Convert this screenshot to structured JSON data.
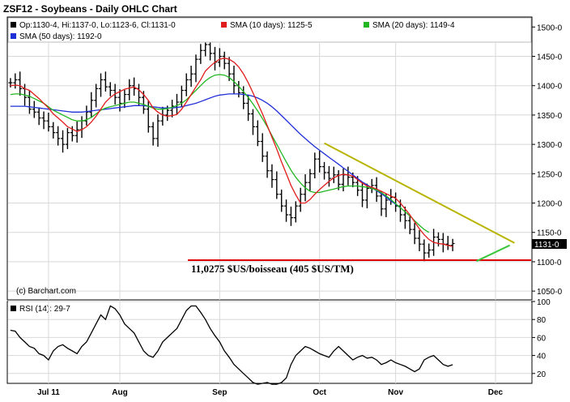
{
  "title": "ZSF12 - Soybeans - Daily OHLC Chart",
  "legend": {
    "ohlc": "Op:1130-4, Hi:1137-0, Lo:1123-6, Cl:1131-0",
    "sma10": "SMA (10 days): 1125-5",
    "sma20": "SMA (20 days): 1149-4",
    "sma50": "SMA (50 days): 1192-0"
  },
  "colors": {
    "ohlc": "#000000",
    "sma10": "#e11b1b",
    "sma20": "#22b722",
    "sma50": "#1f2fd8",
    "trend_upper": "#b8b400",
    "trend_lower": "#3cc63c",
    "support": "#dd0000",
    "rsi": "#000000",
    "grid": "#d8d8d8"
  },
  "price_label": "1131-0",
  "annotation": "11,0275 $US/boisseau (405 $US/TM)",
  "credit": "(c) Barchart.com",
  "rsi_legend": "RSI (14): 29-7",
  "chart_data": [
    {
      "type": "line",
      "title": "ZSF12 - Soybeans - Daily OHLC Chart",
      "y_ticks": [
        "1050-0",
        "1100-0",
        "1150-0",
        "1200-0",
        "1250-0",
        "1300-0",
        "1350-0",
        "1400-0",
        "1450-0",
        "1500-0"
      ],
      "ylim": [
        1035,
        1517
      ],
      "x_ticks": [
        {
          "label": "Jul 11",
          "day": 8
        },
        {
          "label": "Aug",
          "day": 23
        },
        {
          "label": "Sep",
          "day": 44
        },
        {
          "label": "Oct",
          "day": 65
        },
        {
          "label": "Nov",
          "day": 81
        },
        {
          "label": "Dec",
          "day": 102
        }
      ],
      "ohlc_close": [
        1405,
        1410,
        1395,
        1380,
        1360,
        1355,
        1345,
        1340,
        1330,
        1320,
        1310,
        1300,
        1320,
        1315,
        1325,
        1340,
        1355,
        1375,
        1395,
        1410,
        1398,
        1392,
        1380,
        1370,
        1385,
        1400,
        1395,
        1380,
        1360,
        1330,
        1310,
        1340,
        1350,
        1358,
        1365,
        1372,
        1392,
        1410,
        1420,
        1445,
        1460,
        1470,
        1455,
        1440,
        1450,
        1438,
        1420,
        1400,
        1388,
        1370,
        1352,
        1330,
        1305,
        1280,
        1255,
        1240,
        1215,
        1195,
        1180,
        1175,
        1195,
        1215,
        1235,
        1250,
        1275,
        1262,
        1252,
        1242,
        1248,
        1232,
        1248,
        1244,
        1235,
        1222,
        1205,
        1225,
        1230,
        1212,
        1190,
        1205,
        1210,
        1195,
        1180,
        1170,
        1155,
        1140,
        1130,
        1115,
        1120,
        1142,
        1138,
        1130,
        1128,
        1131
      ],
      "sma10": [
        1400,
        1401,
        1400,
        1395,
        1392,
        1385,
        1378,
        1370,
        1362,
        1352,
        1345,
        1338,
        1330,
        1326,
        1322,
        1325,
        1330,
        1338,
        1348,
        1360,
        1372,
        1380,
        1386,
        1390,
        1394,
        1396,
        1398,
        1393,
        1385,
        1375,
        1362,
        1355,
        1350,
        1348,
        1349,
        1351,
        1360,
        1372,
        1385,
        1398,
        1410,
        1425,
        1433,
        1440,
        1445,
        1447,
        1445,
        1440,
        1432,
        1420,
        1405,
        1388,
        1370,
        1352,
        1332,
        1312,
        1292,
        1270,
        1250,
        1230,
        1214,
        1200,
        1200,
        1206,
        1215,
        1223,
        1230,
        1237,
        1243,
        1247,
        1249,
        1248,
        1246,
        1240,
        1234,
        1229,
        1227,
        1224,
        1220,
        1216,
        1212,
        1208,
        1200,
        1190,
        1180,
        1168,
        1156,
        1146,
        1138,
        1133,
        1131,
        1130,
        1128,
        1126
      ],
      "sma20": [
        1385,
        1386,
        1386,
        1384,
        1382,
        1378,
        1374,
        1370,
        1364,
        1358,
        1354,
        1350,
        1346,
        1342,
        1340,
        1340,
        1342,
        1346,
        1352,
        1358,
        1362,
        1364,
        1366,
        1368,
        1370,
        1372,
        1372,
        1370,
        1368,
        1365,
        1362,
        1360,
        1360,
        1361,
        1363,
        1366,
        1370,
        1376,
        1384,
        1392,
        1400,
        1408,
        1414,
        1418,
        1419,
        1418,
        1414,
        1407,
        1399,
        1390,
        1380,
        1369,
        1357,
        1344,
        1330,
        1315,
        1300,
        1285,
        1270,
        1256,
        1244,
        1234,
        1226,
        1220,
        1218,
        1218,
        1220,
        1222,
        1224,
        1226,
        1228,
        1229,
        1229,
        1229,
        1228,
        1227,
        1225,
        1222,
        1218,
        1212,
        1206,
        1199,
        1192,
        1185,
        1178,
        1170,
        1162,
        1155,
        1150
      ],
      "sma50": [
        1365,
        1365,
        1365,
        1365,
        1364,
        1363,
        1362,
        1361,
        1360,
        1359,
        1358,
        1357,
        1356,
        1355,
        1355,
        1355,
        1356,
        1357,
        1358,
        1359,
        1360,
        1361,
        1362,
        1363,
        1364,
        1365,
        1366,
        1366,
        1366,
        1365,
        1364,
        1363,
        1362,
        1362,
        1362,
        1363,
        1364,
        1366,
        1368,
        1370,
        1373,
        1376,
        1379,
        1382,
        1384,
        1385,
        1386,
        1386,
        1386,
        1385,
        1384,
        1382,
        1379,
        1375,
        1370,
        1364,
        1357,
        1349,
        1341,
        1333,
        1325,
        1317,
        1310,
        1303,
        1296,
        1290,
        1284,
        1278,
        1272,
        1266,
        1260,
        1254,
        1248,
        1242,
        1236,
        1231,
        1226,
        1221,
        1216,
        1210,
        1204,
        1198,
        1192
      ],
      "trend_upper": {
        "from": {
          "day": 66,
          "price": 1302
        },
        "to": {
          "day": 106,
          "price": 1132
        }
      },
      "trend_lower": {
        "from": {
          "day": 98,
          "price": 1101
        },
        "to": {
          "day": 105,
          "price": 1128
        }
      },
      "support_level": {
        "price": 1102.75,
        "label": "11,0275 $US/boisseau (405 $US/TM)"
      }
    },
    {
      "type": "line",
      "title": "RSI (14): 29-7",
      "y_ticks": [
        "20",
        "40",
        "60",
        "80",
        "100"
      ],
      "ylim": [
        9,
        100
      ],
      "values": [
        68,
        67,
        60,
        55,
        50,
        48,
        42,
        40,
        35,
        45,
        50,
        52,
        48,
        45,
        42,
        50,
        55,
        65,
        75,
        85,
        80,
        95,
        92,
        85,
        75,
        70,
        65,
        55,
        45,
        40,
        38,
        45,
        55,
        60,
        65,
        70,
        80,
        90,
        95,
        95,
        88,
        80,
        70,
        62,
        55,
        45,
        38,
        30,
        25,
        20,
        15,
        10,
        8,
        9,
        10,
        8,
        8,
        10,
        15,
        30,
        40,
        45,
        50,
        48,
        45,
        42,
        40,
        38,
        45,
        50,
        45,
        40,
        35,
        38,
        40,
        37,
        38,
        35,
        30,
        32,
        35,
        32,
        30,
        28,
        25,
        22,
        25,
        35,
        38,
        40,
        35,
        30,
        28,
        29.7
      ]
    }
  ]
}
